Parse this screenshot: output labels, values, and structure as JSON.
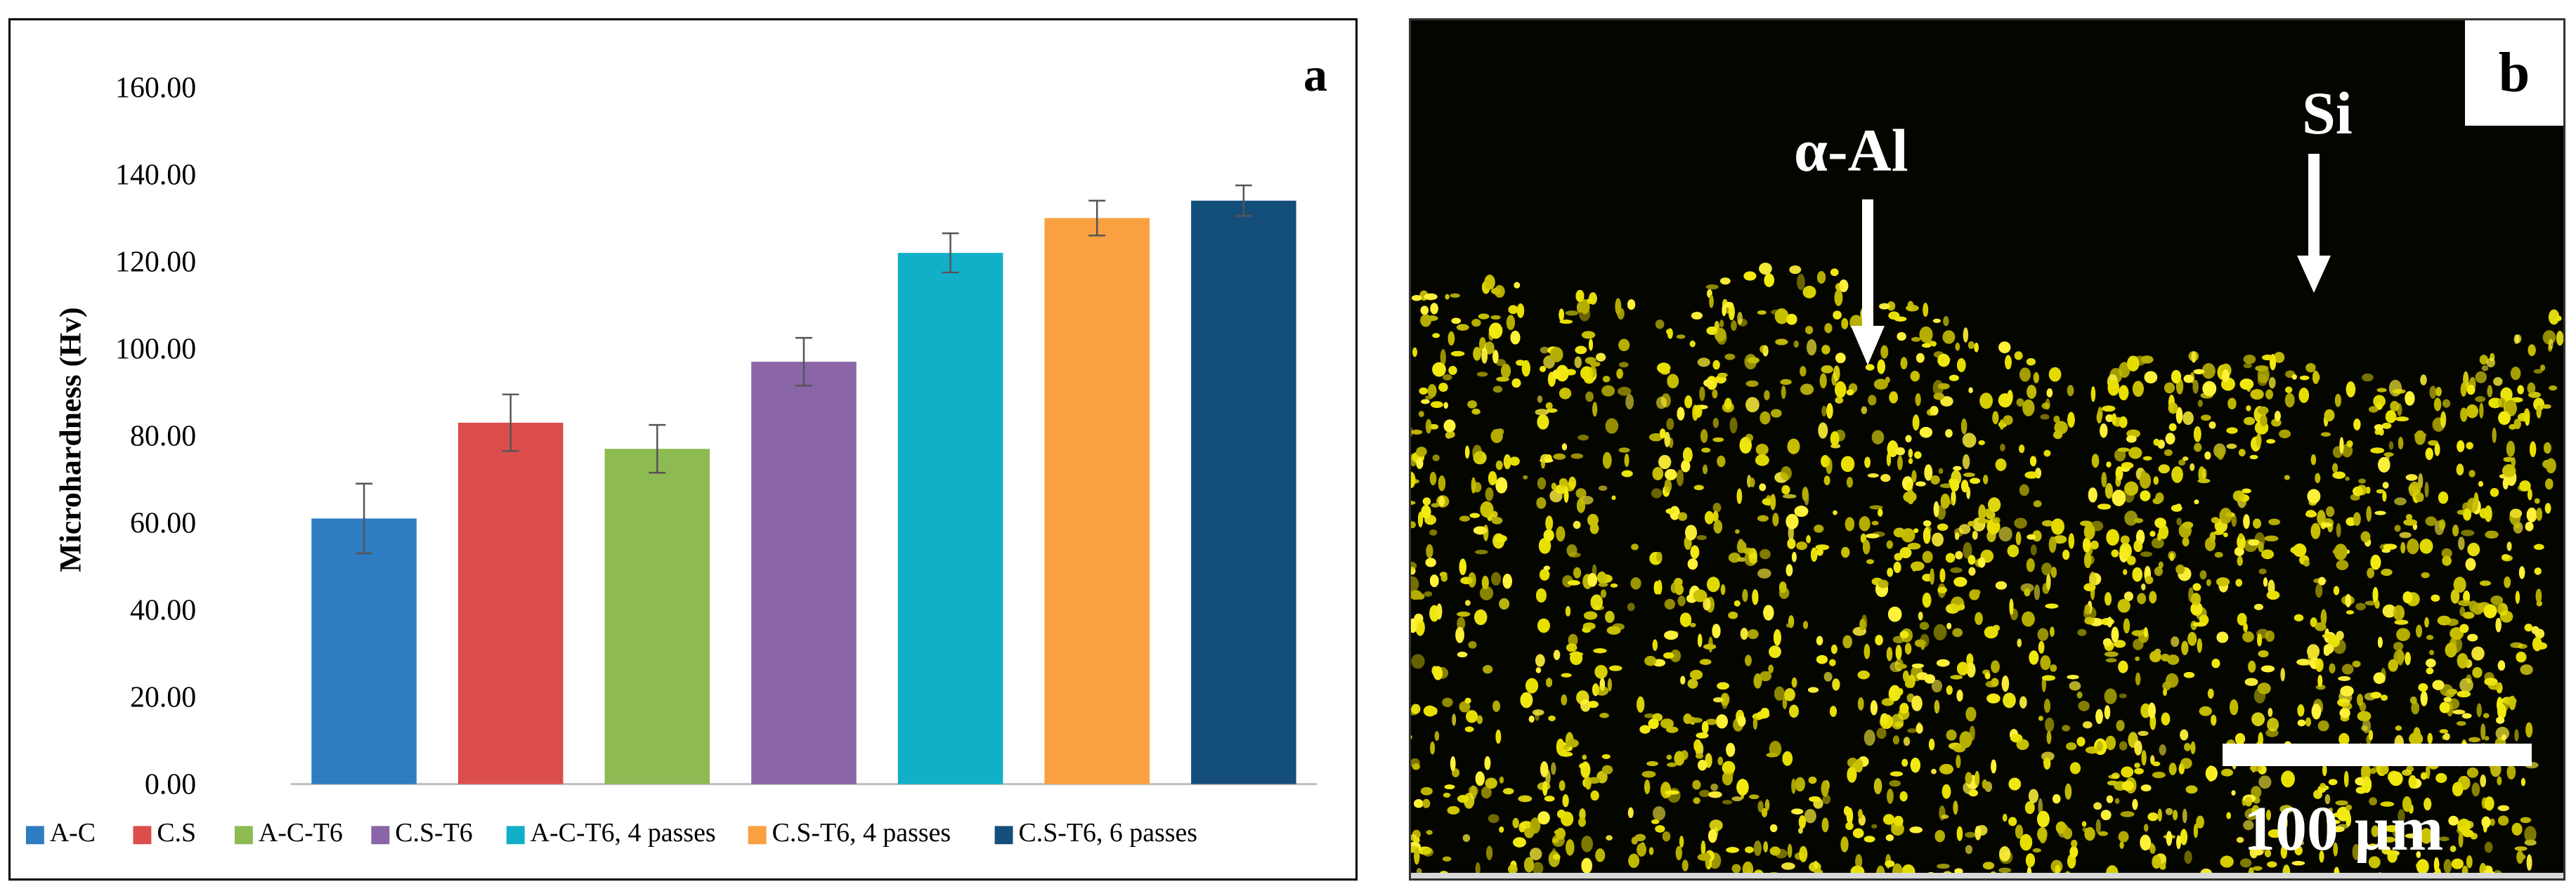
{
  "panel_a": {
    "tag": "a"
  },
  "panel_b": {
    "tag": "b",
    "label_alpha_al": "α-Al",
    "label_si": "Si",
    "scale_label": "100 µm"
  },
  "chart_data": {
    "type": "bar",
    "ylabel": "Microhardness (Hv)",
    "xlabel": "",
    "ylim": [
      0,
      160
    ],
    "yticks": [
      "0.00",
      "20.00",
      "40.00",
      "60.00",
      "80.00",
      "100.00",
      "120.00",
      "140.00",
      "160.00"
    ],
    "legend_position": "bottom",
    "series": [
      {
        "name": "A-C",
        "value": 61,
        "error": 8,
        "color": "#2E7CC2"
      },
      {
        "name": "C.S",
        "value": 83,
        "error": 6.5,
        "color": "#DB4E4C"
      },
      {
        "name": "A-C-T6",
        "value": 77,
        "error": 5.5,
        "color": "#8DBA52"
      },
      {
        "name": "C.S-T6",
        "value": 97,
        "error": 5.5,
        "color": "#8A65A8"
      },
      {
        "name": "A-C-T6,  4 passes",
        "value": 122,
        "error": 4.5,
        "color": "#12AFC9"
      },
      {
        "name": "C.S-T6, 4 passes",
        "value": 130,
        "error": 4,
        "color": "#F9A041"
      },
      {
        "name": "C.S-T6, 6 passes",
        "value": 134,
        "error": 3.5,
        "color": "#144E7A"
      }
    ]
  }
}
